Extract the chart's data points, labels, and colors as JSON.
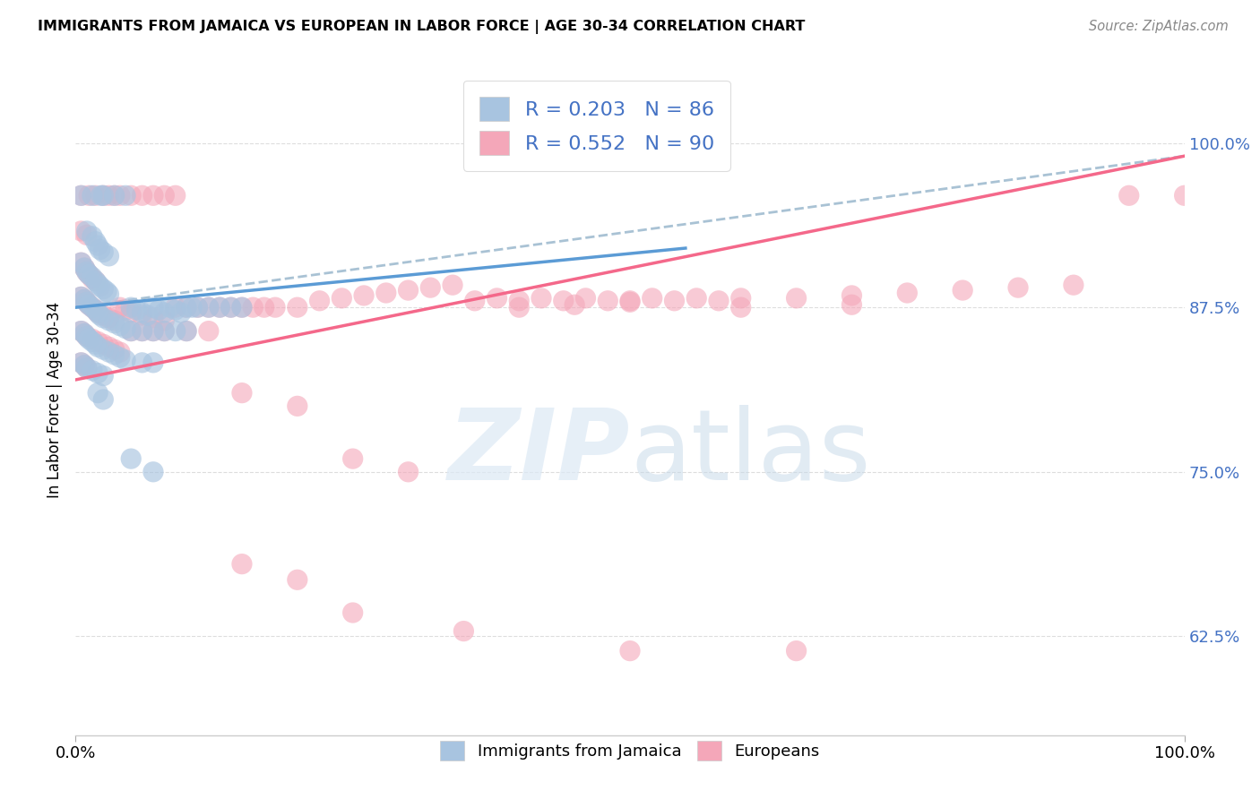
{
  "title": "IMMIGRANTS FROM JAMAICA VS EUROPEAN IN LABOR FORCE | AGE 30-34 CORRELATION CHART",
  "source": "Source: ZipAtlas.com",
  "ylabel": "In Labor Force | Age 30-34",
  "yticks": [
    0.625,
    0.75,
    0.875,
    1.0
  ],
  "ytick_labels": [
    "62.5%",
    "75.0%",
    "87.5%",
    "100.0%"
  ],
  "xlim": [
    0.0,
    1.0
  ],
  "ylim": [
    0.55,
    1.06
  ],
  "jamaica_R": 0.203,
  "jamaica_N": 86,
  "european_R": 0.552,
  "european_N": 90,
  "jamaica_scatter_color": "#a8c4e0",
  "european_scatter_color": "#f4a7b9",
  "jamaica_line_color": "#5b9bd5",
  "european_line_color": "#f4688a",
  "trendline_dashed_color": "#9bbdd4",
  "jamaica_points": [
    [
      0.005,
      0.96
    ],
    [
      0.015,
      0.96
    ],
    [
      0.025,
      0.96
    ],
    [
      0.035,
      0.96
    ],
    [
      0.045,
      0.96
    ],
    [
      0.023,
      0.96
    ],
    [
      0.01,
      0.933
    ],
    [
      0.015,
      0.929
    ],
    [
      0.018,
      0.925
    ],
    [
      0.02,
      0.922
    ],
    [
      0.022,
      0.919
    ],
    [
      0.025,
      0.917
    ],
    [
      0.03,
      0.914
    ],
    [
      0.005,
      0.909
    ],
    [
      0.008,
      0.905
    ],
    [
      0.01,
      0.902
    ],
    [
      0.012,
      0.9
    ],
    [
      0.015,
      0.898
    ],
    [
      0.018,
      0.895
    ],
    [
      0.02,
      0.893
    ],
    [
      0.022,
      0.891
    ],
    [
      0.025,
      0.889
    ],
    [
      0.028,
      0.887
    ],
    [
      0.03,
      0.885
    ],
    [
      0.005,
      0.883
    ],
    [
      0.008,
      0.881
    ],
    [
      0.01,
      0.879
    ],
    [
      0.012,
      0.877
    ],
    [
      0.015,
      0.875
    ],
    [
      0.018,
      0.873
    ],
    [
      0.02,
      0.871
    ],
    [
      0.022,
      0.869
    ],
    [
      0.025,
      0.867
    ],
    [
      0.03,
      0.865
    ],
    [
      0.035,
      0.863
    ],
    [
      0.04,
      0.861
    ],
    [
      0.045,
      0.859
    ],
    [
      0.05,
      0.875
    ],
    [
      0.055,
      0.873
    ],
    [
      0.06,
      0.871
    ],
    [
      0.065,
      0.869
    ],
    [
      0.07,
      0.875
    ],
    [
      0.075,
      0.873
    ],
    [
      0.08,
      0.871
    ],
    [
      0.085,
      0.875
    ],
    [
      0.09,
      0.873
    ],
    [
      0.095,
      0.871
    ],
    [
      0.1,
      0.875
    ],
    [
      0.105,
      0.875
    ],
    [
      0.11,
      0.875
    ],
    [
      0.12,
      0.875
    ],
    [
      0.13,
      0.875
    ],
    [
      0.14,
      0.875
    ],
    [
      0.15,
      0.875
    ],
    [
      0.005,
      0.857
    ],
    [
      0.008,
      0.855
    ],
    [
      0.01,
      0.853
    ],
    [
      0.012,
      0.851
    ],
    [
      0.015,
      0.849
    ],
    [
      0.018,
      0.847
    ],
    [
      0.02,
      0.845
    ],
    [
      0.025,
      0.843
    ],
    [
      0.03,
      0.841
    ],
    [
      0.035,
      0.839
    ],
    [
      0.04,
      0.837
    ],
    [
      0.045,
      0.835
    ],
    [
      0.05,
      0.857
    ],
    [
      0.06,
      0.857
    ],
    [
      0.07,
      0.857
    ],
    [
      0.08,
      0.857
    ],
    [
      0.09,
      0.857
    ],
    [
      0.1,
      0.857
    ],
    [
      0.005,
      0.833
    ],
    [
      0.008,
      0.831
    ],
    [
      0.01,
      0.829
    ],
    [
      0.015,
      0.827
    ],
    [
      0.02,
      0.825
    ],
    [
      0.025,
      0.823
    ],
    [
      0.06,
      0.833
    ],
    [
      0.07,
      0.833
    ],
    [
      0.05,
      0.76
    ],
    [
      0.07,
      0.75
    ],
    [
      0.02,
      0.81
    ],
    [
      0.025,
      0.805
    ]
  ],
  "european_points": [
    [
      0.005,
      0.96
    ],
    [
      0.012,
      0.96
    ],
    [
      0.018,
      0.96
    ],
    [
      0.025,
      0.96
    ],
    [
      0.03,
      0.96
    ],
    [
      0.035,
      0.96
    ],
    [
      0.04,
      0.96
    ],
    [
      0.05,
      0.96
    ],
    [
      0.06,
      0.96
    ],
    [
      0.07,
      0.96
    ],
    [
      0.08,
      0.96
    ],
    [
      0.09,
      0.96
    ],
    [
      0.005,
      0.933
    ],
    [
      0.01,
      0.93
    ],
    [
      0.005,
      0.909
    ],
    [
      0.008,
      0.905
    ],
    [
      0.01,
      0.902
    ],
    [
      0.012,
      0.9
    ],
    [
      0.015,
      0.897
    ],
    [
      0.018,
      0.895
    ],
    [
      0.005,
      0.883
    ],
    [
      0.008,
      0.881
    ],
    [
      0.01,
      0.879
    ],
    [
      0.012,
      0.877
    ],
    [
      0.015,
      0.875
    ],
    [
      0.018,
      0.873
    ],
    [
      0.02,
      0.871
    ],
    [
      0.025,
      0.869
    ],
    [
      0.03,
      0.867
    ],
    [
      0.035,
      0.865
    ],
    [
      0.04,
      0.875
    ],
    [
      0.045,
      0.873
    ],
    [
      0.05,
      0.871
    ],
    [
      0.06,
      0.869
    ],
    [
      0.07,
      0.867
    ],
    [
      0.08,
      0.865
    ],
    [
      0.09,
      0.875
    ],
    [
      0.1,
      0.875
    ],
    [
      0.11,
      0.875
    ],
    [
      0.12,
      0.875
    ],
    [
      0.13,
      0.875
    ],
    [
      0.14,
      0.875
    ],
    [
      0.15,
      0.875
    ],
    [
      0.16,
      0.875
    ],
    [
      0.17,
      0.875
    ],
    [
      0.18,
      0.875
    ],
    [
      0.2,
      0.875
    ],
    [
      0.22,
      0.88
    ],
    [
      0.24,
      0.882
    ],
    [
      0.26,
      0.884
    ],
    [
      0.28,
      0.886
    ],
    [
      0.3,
      0.888
    ],
    [
      0.32,
      0.89
    ],
    [
      0.34,
      0.892
    ],
    [
      0.36,
      0.88
    ],
    [
      0.38,
      0.882
    ],
    [
      0.4,
      0.88
    ],
    [
      0.42,
      0.882
    ],
    [
      0.44,
      0.88
    ],
    [
      0.46,
      0.882
    ],
    [
      0.48,
      0.88
    ],
    [
      0.5,
      0.88
    ],
    [
      0.52,
      0.882
    ],
    [
      0.54,
      0.88
    ],
    [
      0.56,
      0.882
    ],
    [
      0.58,
      0.88
    ],
    [
      0.6,
      0.882
    ],
    [
      0.65,
      0.882
    ],
    [
      0.7,
      0.884
    ],
    [
      0.75,
      0.886
    ],
    [
      0.8,
      0.888
    ],
    [
      0.85,
      0.89
    ],
    [
      0.9,
      0.892
    ],
    [
      0.95,
      0.96
    ],
    [
      1.0,
      0.96
    ],
    [
      0.005,
      0.857
    ],
    [
      0.008,
      0.855
    ],
    [
      0.01,
      0.853
    ],
    [
      0.015,
      0.851
    ],
    [
      0.02,
      0.849
    ],
    [
      0.025,
      0.847
    ],
    [
      0.03,
      0.845
    ],
    [
      0.035,
      0.843
    ],
    [
      0.04,
      0.841
    ],
    [
      0.05,
      0.857
    ],
    [
      0.06,
      0.857
    ],
    [
      0.07,
      0.857
    ],
    [
      0.08,
      0.857
    ],
    [
      0.1,
      0.857
    ],
    [
      0.12,
      0.857
    ],
    [
      0.005,
      0.833
    ],
    [
      0.008,
      0.831
    ],
    [
      0.01,
      0.829
    ],
    [
      0.15,
      0.81
    ],
    [
      0.2,
      0.8
    ],
    [
      0.25,
      0.76
    ],
    [
      0.3,
      0.75
    ],
    [
      0.4,
      0.875
    ],
    [
      0.45,
      0.877
    ],
    [
      0.5,
      0.879
    ],
    [
      0.6,
      0.875
    ],
    [
      0.7,
      0.877
    ],
    [
      0.15,
      0.68
    ],
    [
      0.2,
      0.668
    ],
    [
      0.25,
      0.643
    ],
    [
      0.35,
      0.629
    ],
    [
      0.5,
      0.614
    ],
    [
      0.65,
      0.614
    ]
  ]
}
